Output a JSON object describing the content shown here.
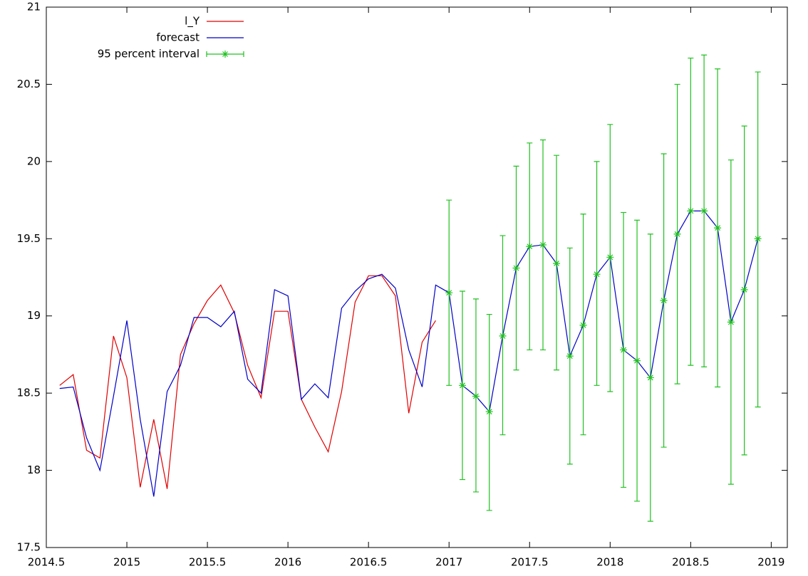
{
  "chart_data": {
    "type": "line",
    "x": [
      2014.583,
      2014.667,
      2014.75,
      2014.833,
      2014.917,
      2015,
      2015.083,
      2015.167,
      2015.25,
      2015.333,
      2015.417,
      2015.5,
      2015.583,
      2015.667,
      2015.75,
      2015.833,
      2015.917,
      2016,
      2016.083,
      2016.167,
      2016.25,
      2016.333,
      2016.417,
      2016.5,
      2016.583,
      2016.667,
      2016.75,
      2016.833,
      2016.917,
      2017,
      2017.083,
      2017.167,
      2017.25,
      2017.333,
      2017.417,
      2017.5,
      2017.583,
      2017.667,
      2017.75,
      2017.833,
      2017.917,
      2018,
      2018.083,
      2018.167,
      2018.25,
      2018.333,
      2018.417,
      2018.5,
      2018.583,
      2018.667,
      2018.75,
      2018.833,
      2018.917
    ],
    "series": [
      {
        "name": "l_Y",
        "color": "#e00000",
        "values": [
          18.55,
          18.62,
          18.13,
          18.08,
          18.87,
          18.6,
          17.89,
          18.33,
          17.88,
          18.75,
          18.95,
          19.1,
          19.2,
          19.02,
          18.68,
          18.47,
          19.03,
          19.03,
          18.46,
          18.28,
          18.12,
          18.51,
          19.09,
          19.26,
          19.26,
          19.13,
          18.37,
          18.83,
          18.97,
          null,
          null,
          null,
          null,
          null,
          null,
          null,
          null,
          null,
          null,
          null,
          null,
          null,
          null,
          null,
          null,
          null,
          null,
          null,
          null,
          null,
          null,
          null,
          null
        ]
      },
      {
        "name": "forecast",
        "color": "#0000c8",
        "values": [
          18.53,
          18.54,
          18.21,
          18.0,
          18.48,
          18.97,
          18.33,
          17.83,
          18.51,
          18.68,
          18.99,
          18.99,
          18.93,
          19.03,
          18.59,
          18.5,
          19.17,
          19.13,
          18.46,
          18.56,
          18.47,
          19.05,
          19.16,
          19.24,
          19.27,
          19.18,
          18.78,
          18.54,
          19.2,
          19.15,
          18.55,
          18.48,
          18.38,
          18.87,
          19.31,
          19.45,
          19.46,
          19.34,
          18.74,
          18.94,
          19.27,
          19.38,
          18.78,
          18.71,
          18.6,
          19.1,
          19.53,
          19.68,
          19.68,
          19.57,
          18.96,
          19.17,
          19.5
        ]
      },
      {
        "name": "95 percent interval",
        "color": "#20c020",
        "values": [
          null,
          null,
          null,
          null,
          null,
          null,
          null,
          null,
          null,
          null,
          null,
          null,
          null,
          null,
          null,
          null,
          null,
          null,
          null,
          null,
          null,
          null,
          null,
          null,
          null,
          null,
          null,
          null,
          null,
          19.15,
          18.55,
          18.48,
          18.38,
          18.87,
          19.31,
          19.45,
          19.46,
          19.34,
          18.74,
          18.94,
          19.27,
          19.38,
          18.78,
          18.71,
          18.6,
          19.1,
          19.53,
          19.68,
          19.68,
          19.57,
          18.96,
          19.17,
          19.5
        ],
        "low": [
          null,
          null,
          null,
          null,
          null,
          null,
          null,
          null,
          null,
          null,
          null,
          null,
          null,
          null,
          null,
          null,
          null,
          null,
          null,
          null,
          null,
          null,
          null,
          null,
          null,
          null,
          null,
          null,
          null,
          18.55,
          17.94,
          17.86,
          17.74,
          18.23,
          18.65,
          18.78,
          18.78,
          18.65,
          18.04,
          18.23,
          18.55,
          18.51,
          17.89,
          17.8,
          17.67,
          18.15,
          18.56,
          18.68,
          18.67,
          18.54,
          17.91,
          18.1,
          18.41
        ],
        "high": [
          null,
          null,
          null,
          null,
          null,
          null,
          null,
          null,
          null,
          null,
          null,
          null,
          null,
          null,
          null,
          null,
          null,
          null,
          null,
          null,
          null,
          null,
          null,
          null,
          null,
          null,
          null,
          null,
          null,
          19.75,
          19.16,
          19.11,
          19.01,
          19.52,
          19.97,
          20.12,
          20.14,
          20.04,
          19.44,
          19.66,
          20.0,
          20.24,
          19.67,
          19.62,
          19.53,
          20.05,
          20.5,
          20.67,
          20.69,
          20.6,
          20.01,
          20.23,
          20.58
        ]
      }
    ],
    "xlim": [
      2014.5,
      2019.1
    ],
    "ylim": [
      17.5,
      21
    ],
    "xticks": [
      2014.5,
      2015,
      2015.5,
      2016,
      2016.5,
      2017,
      2017.5,
      2018,
      2018.5,
      2019
    ],
    "yticks": [
      17.5,
      18,
      18.5,
      19,
      19.5,
      20,
      20.5,
      21
    ],
    "legend": "top-left"
  }
}
